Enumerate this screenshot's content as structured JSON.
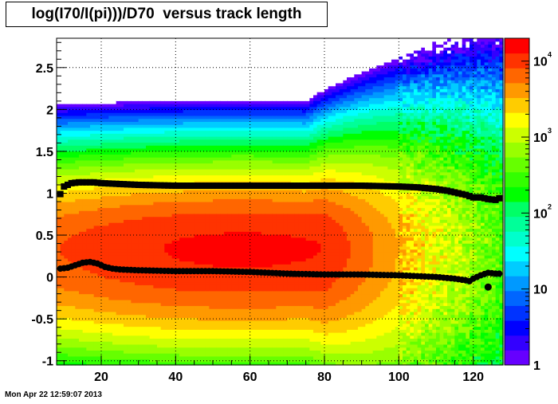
{
  "chart_data": {
    "type": "heatmap",
    "title": "log(I70/I(pi)))/D70  versus track length",
    "xlim": [
      8,
      128
    ],
    "ylim": [
      -1.05,
      2.85
    ],
    "zlim": [
      1,
      20000
    ],
    "z_scale": "log",
    "grid": true,
    "x_ticks": [
      20,
      40,
      60,
      80,
      100,
      120
    ],
    "y_ticks": [
      -1,
      -0.5,
      0,
      0.5,
      1,
      1.5,
      2,
      2.5
    ],
    "color_axis_labels": [
      {
        "base": "1",
        "exp": ""
      },
      {
        "base": "10",
        "exp": ""
      },
      {
        "base": "10",
        "exp": "2"
      },
      {
        "base": "10",
        "exp": "3"
      },
      {
        "base": "10",
        "exp": "4"
      }
    ],
    "palette": [
      "#6600ff",
      "#3300ff",
      "#0000ff",
      "#0033ff",
      "#0066ff",
      "#0099ff",
      "#00ccff",
      "#00ffff",
      "#00ffcc",
      "#00ff99",
      "#00ff66",
      "#00ff00",
      "#33ff00",
      "#66ff00",
      "#99ff00",
      "#ccff00",
      "#ffff00",
      "#ffcc00",
      "#ff9900",
      "#ff6600",
      "#ff3300",
      "#ff0000"
    ],
    "series": [
      {
        "x": [
          9,
          10,
          12,
          14,
          16,
          18,
          20,
          25,
          30,
          40,
          50,
          60,
          70,
          80,
          90,
          100,
          105,
          110,
          113,
          116,
          118,
          120,
          122,
          124,
          126,
          127
        ],
        "y": [
          0.99,
          1.08,
          1.12,
          1.13,
          1.13,
          1.13,
          1.12,
          1.11,
          1.1,
          1.09,
          1.09,
          1.09,
          1.09,
          1.09,
          1.09,
          1.08,
          1.07,
          1.05,
          1.03,
          1.0,
          0.98,
          0.95,
          0.95,
          0.93,
          0.92,
          0.94
        ]
      },
      {
        "x": [
          9,
          11,
          13,
          15,
          17,
          19,
          21,
          23,
          25,
          30,
          40,
          50,
          60,
          70,
          80,
          90,
          100,
          110,
          115,
          118,
          119,
          120,
          122,
          124,
          126,
          127
        ],
        "y": [
          0.1,
          0.11,
          0.14,
          0.17,
          0.18,
          0.16,
          0.12,
          0.1,
          0.09,
          0.08,
          0.07,
          0.07,
          0.06,
          0.04,
          0.03,
          0.03,
          0.02,
          0.0,
          -0.02,
          -0.04,
          -0.05,
          -0.02,
          0.02,
          0.05,
          0.04,
          0.04
        ]
      }
    ],
    "outlier_point": {
      "x": 124,
      "y": -0.12
    }
  },
  "footer": {
    "timestamp": "Mon Apr 22 12:59:07 2013"
  }
}
